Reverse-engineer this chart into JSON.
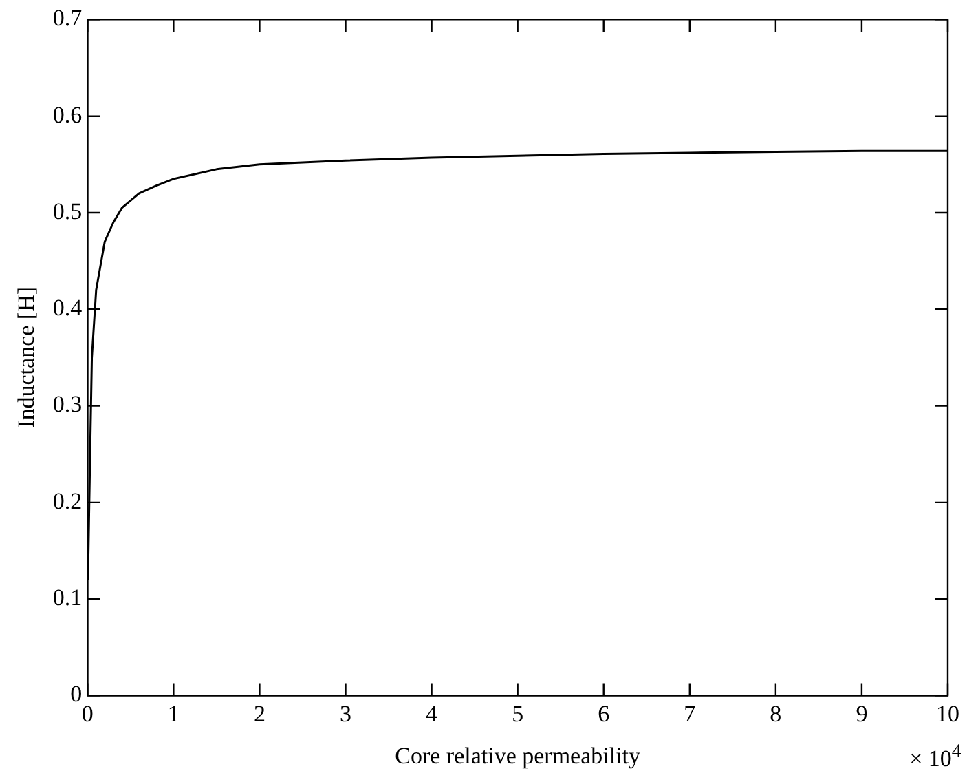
{
  "chart_data": {
    "type": "line",
    "xlabel": "Core relative permeability",
    "ylabel": "Inductance [H]",
    "annotations": [
      "× 10$^{4}$"
    ],
    "x": [
      0.005,
      0.02,
      0.05,
      0.1,
      0.2,
      0.3,
      0.4,
      0.6,
      0.8,
      1,
      1.5,
      2,
      3,
      4,
      5,
      6,
      7,
      8,
      9,
      10
    ],
    "series": [
      {
        "color": "#000000",
        "values": [
          0.12,
          0.2,
          0.35,
          0.42,
          0.47,
          0.49,
          0.505,
          0.52,
          0.528,
          0.535,
          0.545,
          0.55,
          0.554,
          0.557,
          0.559,
          0.561,
          0.562,
          0.563,
          0.564,
          0.564
        ]
      }
    ],
    "xlim": [
      0,
      10
    ],
    "xticks": [
      0,
      1,
      2,
      3,
      4,
      5,
      6,
      7,
      8,
      9,
      10
    ],
    "ylim": [
      0,
      0.7
    ],
    "yticks": [
      0,
      0.1,
      0.2,
      0.3,
      0.4,
      0.5,
      0.6,
      0.7
    ],
    "grid": false,
    "legend": false,
    "marker": "none",
    "line_style": "solid"
  }
}
